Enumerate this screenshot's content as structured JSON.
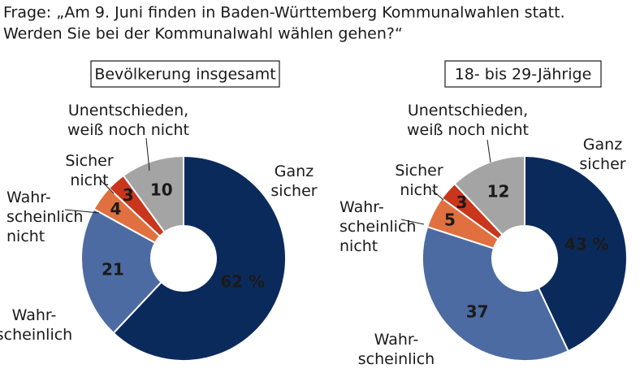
{
  "question": [
    "Frage: „Am 9. Juni finden in Baden-Württemberg Kommunalwahlen statt.",
    "Werden Sie bei der Kommunalwahl wählen gehen?“"
  ],
  "chart_data": [
    {
      "type": "pie",
      "title": "Bevölkerung insgesamt",
      "categories": [
        "Ganz\nsicher",
        "Wahr-\nscheinlich",
        "Wahr-\nscheinlich\nnicht",
        "Sicher\nnicht",
        "Unentschieden,\nweiß noch nicht"
      ],
      "values": [
        62,
        21,
        4,
        3,
        10
      ],
      "value_labels": [
        "62 %",
        "21",
        "4",
        "3",
        "10"
      ],
      "colors": [
        "#0b2a5c",
        "#4c6ba2",
        "#e0703f",
        "#c9361c",
        "#a4a4a4"
      ]
    },
    {
      "type": "pie",
      "title": "18- bis 29-Jährige",
      "categories": [
        "Ganz\nsicher",
        "Wahr-\nscheinlich",
        "Wahr-\nscheinlich\nnicht",
        "Sicher\nnicht",
        "Unentschieden,\nweiß noch nicht"
      ],
      "values": [
        43,
        37,
        5,
        3,
        12
      ],
      "value_labels": [
        "43 %",
        "37",
        "5",
        "3",
        "12"
      ],
      "colors": [
        "#0b2a5c",
        "#4c6ba2",
        "#e0703f",
        "#c9361c",
        "#a4a4a4"
      ]
    }
  ]
}
